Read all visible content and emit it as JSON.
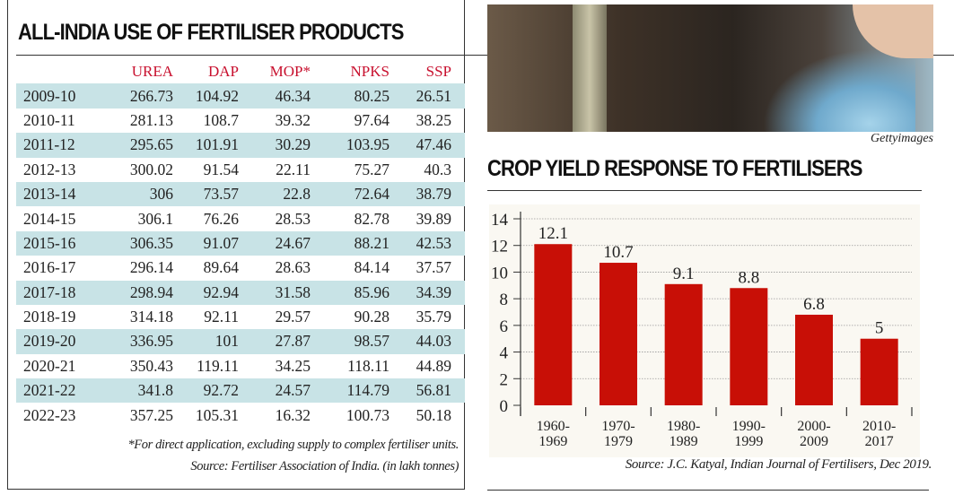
{
  "table_panel": {
    "title": "ALL-INDIA USE OF FERTILISER PRODUCTS",
    "columns": [
      "",
      "UREA",
      "DAP",
      "MOP*",
      "NPKS",
      "SSP"
    ],
    "rows": [
      [
        "2009-10",
        "266.73",
        "104.92",
        "46.34",
        "80.25",
        "26.51"
      ],
      [
        "2010-11",
        "281.13",
        "108.7",
        "39.32",
        "97.64",
        "38.25"
      ],
      [
        "2011-12",
        "295.65",
        "101.91",
        "30.29",
        "103.95",
        "47.46"
      ],
      [
        "2012-13",
        "300.02",
        "91.54",
        "22.11",
        "75.27",
        "40.3"
      ],
      [
        "2013-14",
        "306",
        "73.57",
        "22.8",
        "72.64",
        "38.79"
      ],
      [
        "2014-15",
        "306.1",
        "76.26",
        "28.53",
        "82.78",
        "39.89"
      ],
      [
        "2015-16",
        "306.35",
        "91.07",
        "24.67",
        "88.21",
        "42.53"
      ],
      [
        "2016-17",
        "296.14",
        "89.64",
        "28.63",
        "84.14",
        "37.57"
      ],
      [
        "2017-18",
        "298.94",
        "92.94",
        "31.58",
        "85.96",
        "34.39"
      ],
      [
        "2018-19",
        "314.18",
        "92.11",
        "29.57",
        "90.28",
        "35.79"
      ],
      [
        "2019-20",
        "336.95",
        "101",
        "27.87",
        "98.57",
        "44.03"
      ],
      [
        "2020-21",
        "350.43",
        "119.11",
        "34.25",
        "118.11",
        "44.89"
      ],
      [
        "2021-22",
        "341.8",
        "92.72",
        "24.57",
        "114.79",
        "56.81"
      ],
      [
        "2022-23",
        "357.25",
        "105.31",
        "16.32",
        "100.73",
        "50.18"
      ]
    ],
    "footnote": "*For direct application, excluding supply to complex fertiliser units.",
    "source": "Source: Fertiliser Association of India. (in lakh tonnes)",
    "header_color": "#c8102e",
    "stripe_color": "#c8e3e6"
  },
  "photo": {
    "credit": "Gettyimages"
  },
  "chart_data": {
    "type": "bar",
    "title": "CROP YIELD RESPONSE TO FERTILISERS",
    "categories": [
      "1960-\n1969",
      "1970-\n1979",
      "1980-\n1989",
      "1990-\n1999",
      "2000-\n2009",
      "2010-\n2017"
    ],
    "values": [
      12.1,
      10.7,
      9.1,
      8.8,
      6.8,
      5
    ],
    "data_labels": [
      "12.1",
      "10.7",
      "9.1",
      "8.8",
      "6.8",
      "5"
    ],
    "yticks": [
      "0",
      "2",
      "4",
      "6",
      "8",
      "10",
      "12",
      "14"
    ],
    "ylim": [
      0,
      14
    ],
    "grid": true,
    "bar_color": "#c80f06",
    "xlabel": "",
    "ylabel": "",
    "source": "Source: J.C. Katyal, Indian Journal of Fertilisers, Dec 2019."
  }
}
